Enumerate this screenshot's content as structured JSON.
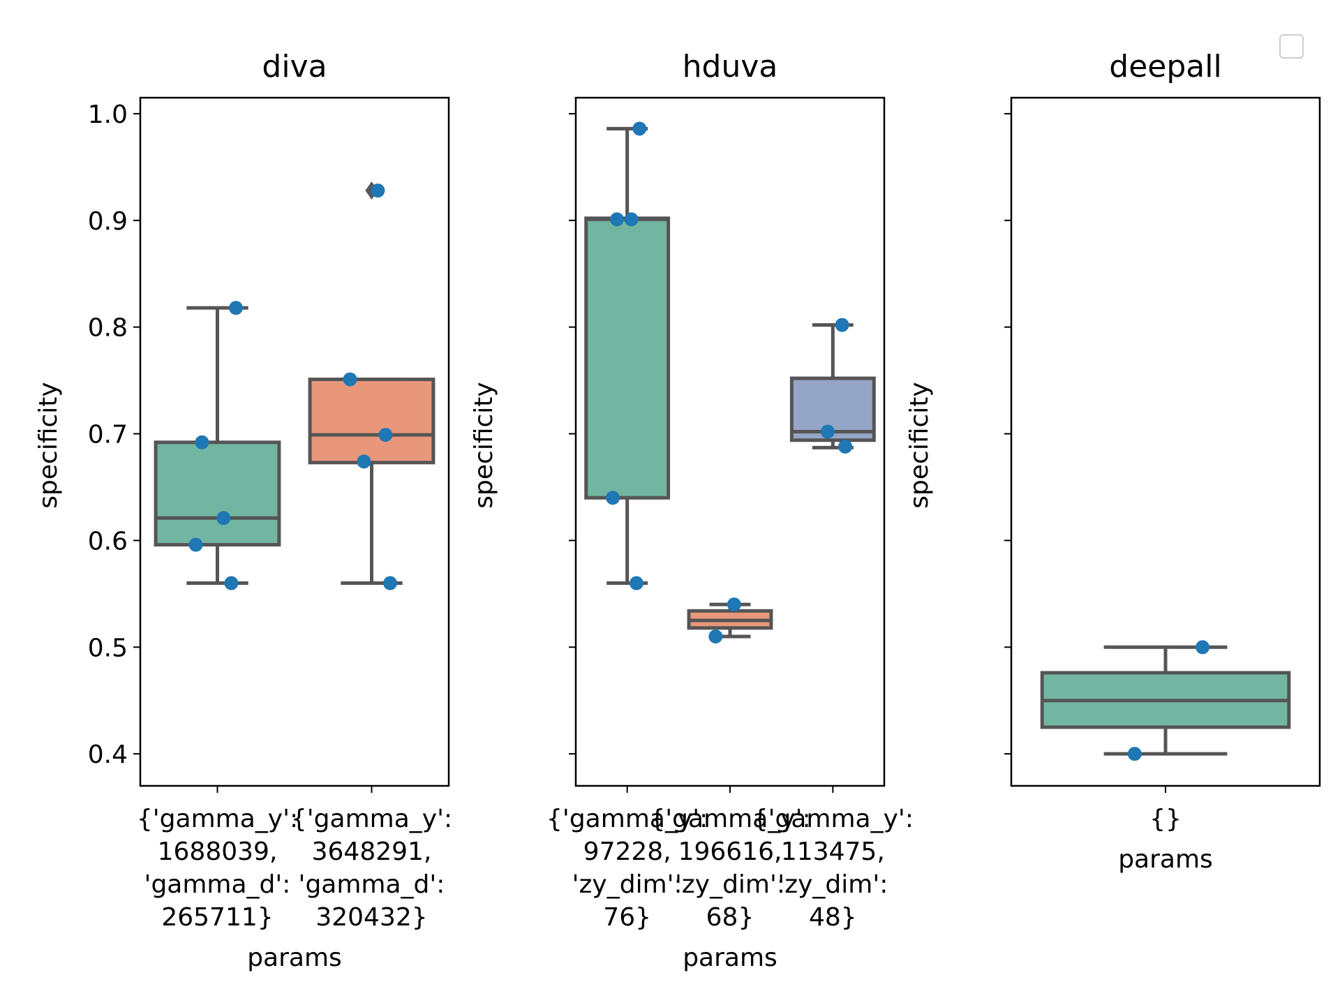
{
  "figure": {
    "legend": {
      "placement": "top-right",
      "entries": []
    }
  },
  "chart_data": [
    {
      "type": "box",
      "title": "diva",
      "xlabel": "params",
      "ylabel": "specificity",
      "ylim": [
        0.37,
        1.015
      ],
      "yticks": [
        0.4,
        0.5,
        0.6,
        0.7,
        0.8,
        0.9,
        1.0
      ],
      "ytick_labels": [
        "0.4",
        "0.5",
        "0.6",
        "0.7",
        "0.8",
        "0.9",
        "1.0"
      ],
      "show_ytick_labels": true,
      "categories": [
        [
          "{'gamma_y':",
          "1688039,",
          "'gamma_d':",
          "265711}"
        ],
        [
          "{'gamma_y':",
          "3648291,",
          "'gamma_d':",
          "320432}"
        ]
      ],
      "boxes": [
        {
          "color": "#72b6a1",
          "whislo": 0.56,
          "q1": 0.596,
          "med": 0.621,
          "q3": 0.692,
          "whishi": 0.818,
          "fliers": []
        },
        {
          "color": "#e9977a",
          "whislo": 0.56,
          "q1": 0.673,
          "med": 0.699,
          "q3": 0.751,
          "whishi": 0.751,
          "fliers": [
            0.928
          ]
        }
      ],
      "points": [
        [
          0.818,
          0.692,
          0.621,
          0.596,
          0.56
        ],
        [
          0.928,
          0.751,
          0.699,
          0.674,
          0.56
        ]
      ],
      "grid": false
    },
    {
      "type": "box",
      "title": "hduva",
      "xlabel": "params",
      "ylabel": "specificity",
      "ylim": [
        0.37,
        1.015
      ],
      "yticks": [
        0.4,
        0.5,
        0.6,
        0.7,
        0.8,
        0.9,
        1.0
      ],
      "show_ytick_labels": false,
      "categories": [
        [
          "{'gamma_y':",
          "97228,",
          "'zy_dim':",
          "76}"
        ],
        [
          "{'gamma_y':",
          "196616,",
          "'zy_dim':",
          "68}"
        ],
        [
          "{'gamma_y':",
          "113475,",
          "'zy_dim':",
          "48}"
        ]
      ],
      "boxes": [
        {
          "color": "#72b6a1",
          "whislo": 0.56,
          "q1": 0.64,
          "med": 0.901,
          "q3": 0.902,
          "whishi": 0.986,
          "fliers": []
        },
        {
          "color": "#e9977a",
          "whislo": 0.51,
          "q1": 0.518,
          "med": 0.525,
          "q3": 0.534,
          "whishi": 0.54,
          "fliers": []
        },
        {
          "color": "#95a5c6",
          "whislo": 0.687,
          "q1": 0.694,
          "med": 0.702,
          "q3": 0.752,
          "whishi": 0.802,
          "fliers": []
        }
      ],
      "points": [
        [
          0.986,
          0.901,
          0.901,
          0.64,
          0.56
        ],
        [
          0.54,
          0.51
        ],
        [
          0.802,
          0.702,
          0.688
        ]
      ],
      "grid": false
    },
    {
      "type": "box",
      "title": "deepall",
      "xlabel": "params",
      "ylabel": "specificity",
      "ylim": [
        0.37,
        1.015
      ],
      "yticks": [
        0.4,
        0.5,
        0.6,
        0.7,
        0.8,
        0.9,
        1.0
      ],
      "show_ytick_labels": false,
      "categories": [
        [
          "{}"
        ]
      ],
      "boxes": [
        {
          "color": "#72b6a1",
          "whislo": 0.4,
          "q1": 0.425,
          "med": 0.45,
          "q3": 0.476,
          "whishi": 0.5,
          "fliers": []
        }
      ],
      "points": [
        [
          0.5,
          0.4
        ]
      ],
      "grid": false
    }
  ]
}
